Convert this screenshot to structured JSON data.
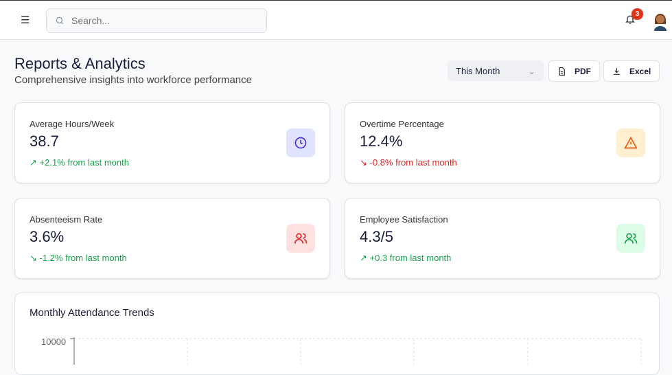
{
  "header": {
    "search_placeholder": "Search...",
    "notification_count": "3"
  },
  "page": {
    "title": "Reports & Analytics",
    "subtitle": "Comprehensive insights into workforce performance",
    "period": "This Month",
    "pdf_label": "PDF",
    "excel_label": "Excel"
  },
  "stats": [
    {
      "label": "Average Hours/Week",
      "value": "38.7",
      "trend": "+2.1% from last month",
      "trend_color": "#16a34a",
      "icon": "clock-icon",
      "icon_bg": "#dfe3fd",
      "icon_color": "#4f2bd9"
    },
    {
      "label": "Overtime Percentage",
      "value": "12.4%",
      "trend": "-0.8% from last month",
      "trend_color": "#dc2626",
      "icon": "alert-triangle-icon",
      "icon_bg": "#fdefcf",
      "icon_color": "#e05a0c"
    },
    {
      "label": "Absenteeism Rate",
      "value": "3.6%",
      "trend": "-1.2% from last month",
      "trend_color": "#16a34a",
      "icon": "users-icon",
      "icon_bg": "#fde0e0",
      "icon_color": "#dc2626"
    },
    {
      "label": "Employee Satisfaction",
      "value": "4.3/5",
      "trend": "+0.3 from last month",
      "trend_color": "#16a34a",
      "icon": "users-icon",
      "icon_bg": "#dcfce7",
      "icon_color": "#16a34a"
    }
  ],
  "chart": {
    "title": "Monthly Attendance Trends",
    "y_tick_top": "10000"
  }
}
